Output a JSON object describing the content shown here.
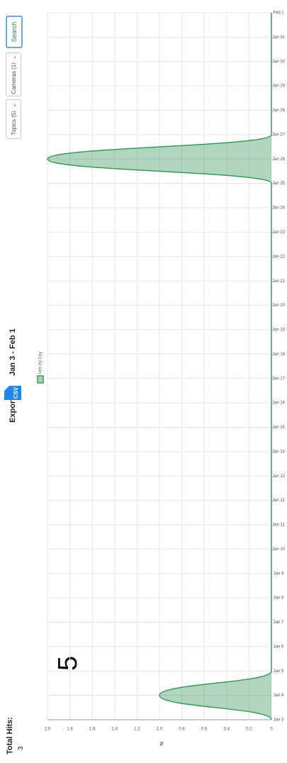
{
  "header": {
    "total_hits_label": "Total Hits:",
    "total_hits": 3,
    "export": "Export",
    "export_format": "CSV",
    "date_range": "Jan 3 - Feb 1"
  },
  "controls": {
    "topics": "Topics (5)",
    "cameras": "Cameras (1)",
    "search": "Search"
  },
  "annotation": "5",
  "chart_data": {
    "type": "line",
    "y_label": "#",
    "categories": [
      "Jan 3",
      "Jan 4",
      "Jan 5",
      "Jan 6",
      "Jan 7",
      "Jan 8",
      "Jan 9",
      "Jan 10",
      "Jan 11",
      "Jan 12",
      "Jan 13",
      "Jan 14",
      "Jan 15",
      "Jan 16",
      "Jan 17",
      "Jan 18",
      "Jan 19",
      "Jan 20",
      "Jan 21",
      "Jan 22",
      "Jan 23",
      "Jan 24",
      "Jan 25",
      "Jan 26",
      "Jan 27",
      "Jan 28",
      "Jan 29",
      "Jan 30",
      "Jan 31",
      "Feb 1"
    ],
    "series": [
      {
        "name": "Hits By Day",
        "color": "#3a9a5c",
        "values": [
          0,
          1,
          0,
          0,
          0,
          0,
          0,
          0,
          0,
          0,
          0,
          0,
          0,
          0,
          0,
          0,
          0,
          0,
          0,
          0,
          0,
          0,
          0,
          2,
          0,
          0,
          0,
          0,
          0,
          0
        ]
      }
    ],
    "ylim": [
      0,
      2
    ],
    "yticks": [
      0,
      0.2,
      0.4,
      0.6,
      0.8,
      {
        "value": 1,
        "label": "1.0"
      },
      1.2,
      1.4,
      1.6,
      1.8,
      {
        "value": 2,
        "label": "2.0"
      }
    ],
    "grid": true
  }
}
